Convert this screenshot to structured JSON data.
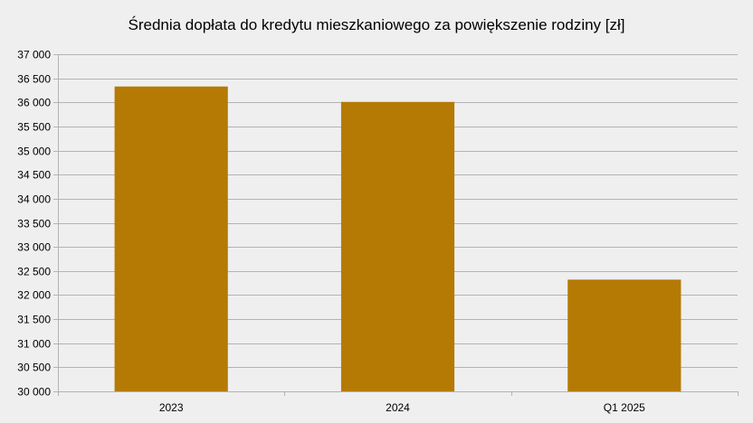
{
  "chart_data": {
    "type": "bar",
    "title": "Średnia dopłata do kredytu mieszkaniowego za powiększenie rodziny [zł]",
    "categories": [
      "2023",
      "2024",
      "Q1 2025"
    ],
    "values": [
      36330,
      36010,
      32320
    ],
    "xlabel": "",
    "ylabel": "",
    "ylim": [
      30000,
      37000
    ],
    "ytick_step": 500,
    "ytick_labels": [
      "30 000",
      "30 500",
      "31 000",
      "31 500",
      "32 000",
      "32 500",
      "33 000",
      "33 500",
      "34 000",
      "34 500",
      "35 000",
      "35 500",
      "36 000",
      "36 500",
      "37 000"
    ],
    "grid": true,
    "legend": "none",
    "colors": {
      "bar": "#b47a04",
      "background": "#efefef",
      "grid": "#b3b3b3"
    }
  }
}
